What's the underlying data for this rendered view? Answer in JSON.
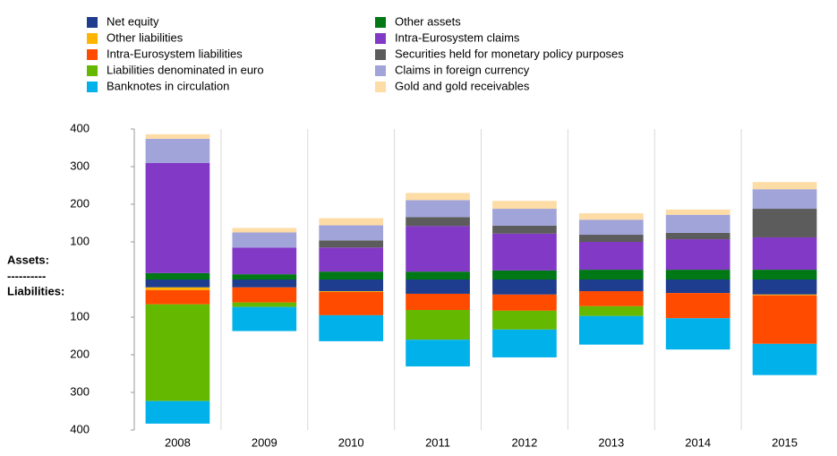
{
  "chart_data": {
    "type": "bar",
    "stacked": true,
    "categories": [
      "2008",
      "2009",
      "2010",
      "2011",
      "2012",
      "2013",
      "2014",
      "2015"
    ],
    "annotations": [
      "Assets:",
      "----------",
      "Liabilities:"
    ],
    "ylim": [
      -400,
      400
    ],
    "yticks": [
      400,
      300,
      200,
      100,
      {
        "value": -100,
        "label": "100"
      },
      {
        "value": -200,
        "label": "200"
      },
      {
        "value": -300,
        "label": "300"
      },
      {
        "value": -400,
        "label": "400"
      }
    ],
    "grid": "x",
    "series": [
      {
        "name": "Net equity",
        "color": "#1f3d8f",
        "values": [
          -21,
          -21,
          -31,
          -38,
          -40,
          -31,
          -36,
          -40
        ]
      },
      {
        "name": "Other liabilities",
        "color": "#ffb400",
        "values": [
          -7,
          0,
          -2,
          0,
          0,
          0,
          0,
          -2
        ]
      },
      {
        "name": "Intra-Eurosystem liabilities",
        "color": "#ff4b00",
        "values": [
          -38,
          -40,
          -62,
          -43,
          -43,
          -40,
          -67,
          -129
        ]
      },
      {
        "name": "Liabilities denominated in euro",
        "color": "#65b800",
        "values": [
          -257,
          -12,
          0,
          -79,
          -50,
          -26,
          0,
          0
        ]
      },
      {
        "name": "Banknotes in circulation",
        "color": "#00b1ea",
        "values": [
          -60,
          -64,
          -69,
          -71,
          -74,
          -76,
          -83,
          -83
        ]
      },
      {
        "name": "Other assets",
        "color": "#007816",
        "values": [
          17,
          14,
          21,
          21,
          24,
          26,
          26,
          26
        ]
      },
      {
        "name": "Intra-Eurosystem claims",
        "color": "#8139c6",
        "values": [
          293,
          71,
          64,
          121,
          98,
          74,
          81,
          86
        ]
      },
      {
        "name": "Securities held for monetary policy purposes",
        "color": "#5c5c5c",
        "values": [
          0,
          0,
          19,
          24,
          21,
          19,
          17,
          76
        ]
      },
      {
        "name": "Claims in foreign currency",
        "color": "#a0a4d9",
        "values": [
          64,
          40,
          40,
          45,
          45,
          40,
          48,
          52
        ]
      },
      {
        "name": "Gold and gold receivables",
        "color": "#fddca5",
        "values": [
          12,
          12,
          19,
          19,
          21,
          17,
          14,
          19
        ]
      }
    ]
  }
}
